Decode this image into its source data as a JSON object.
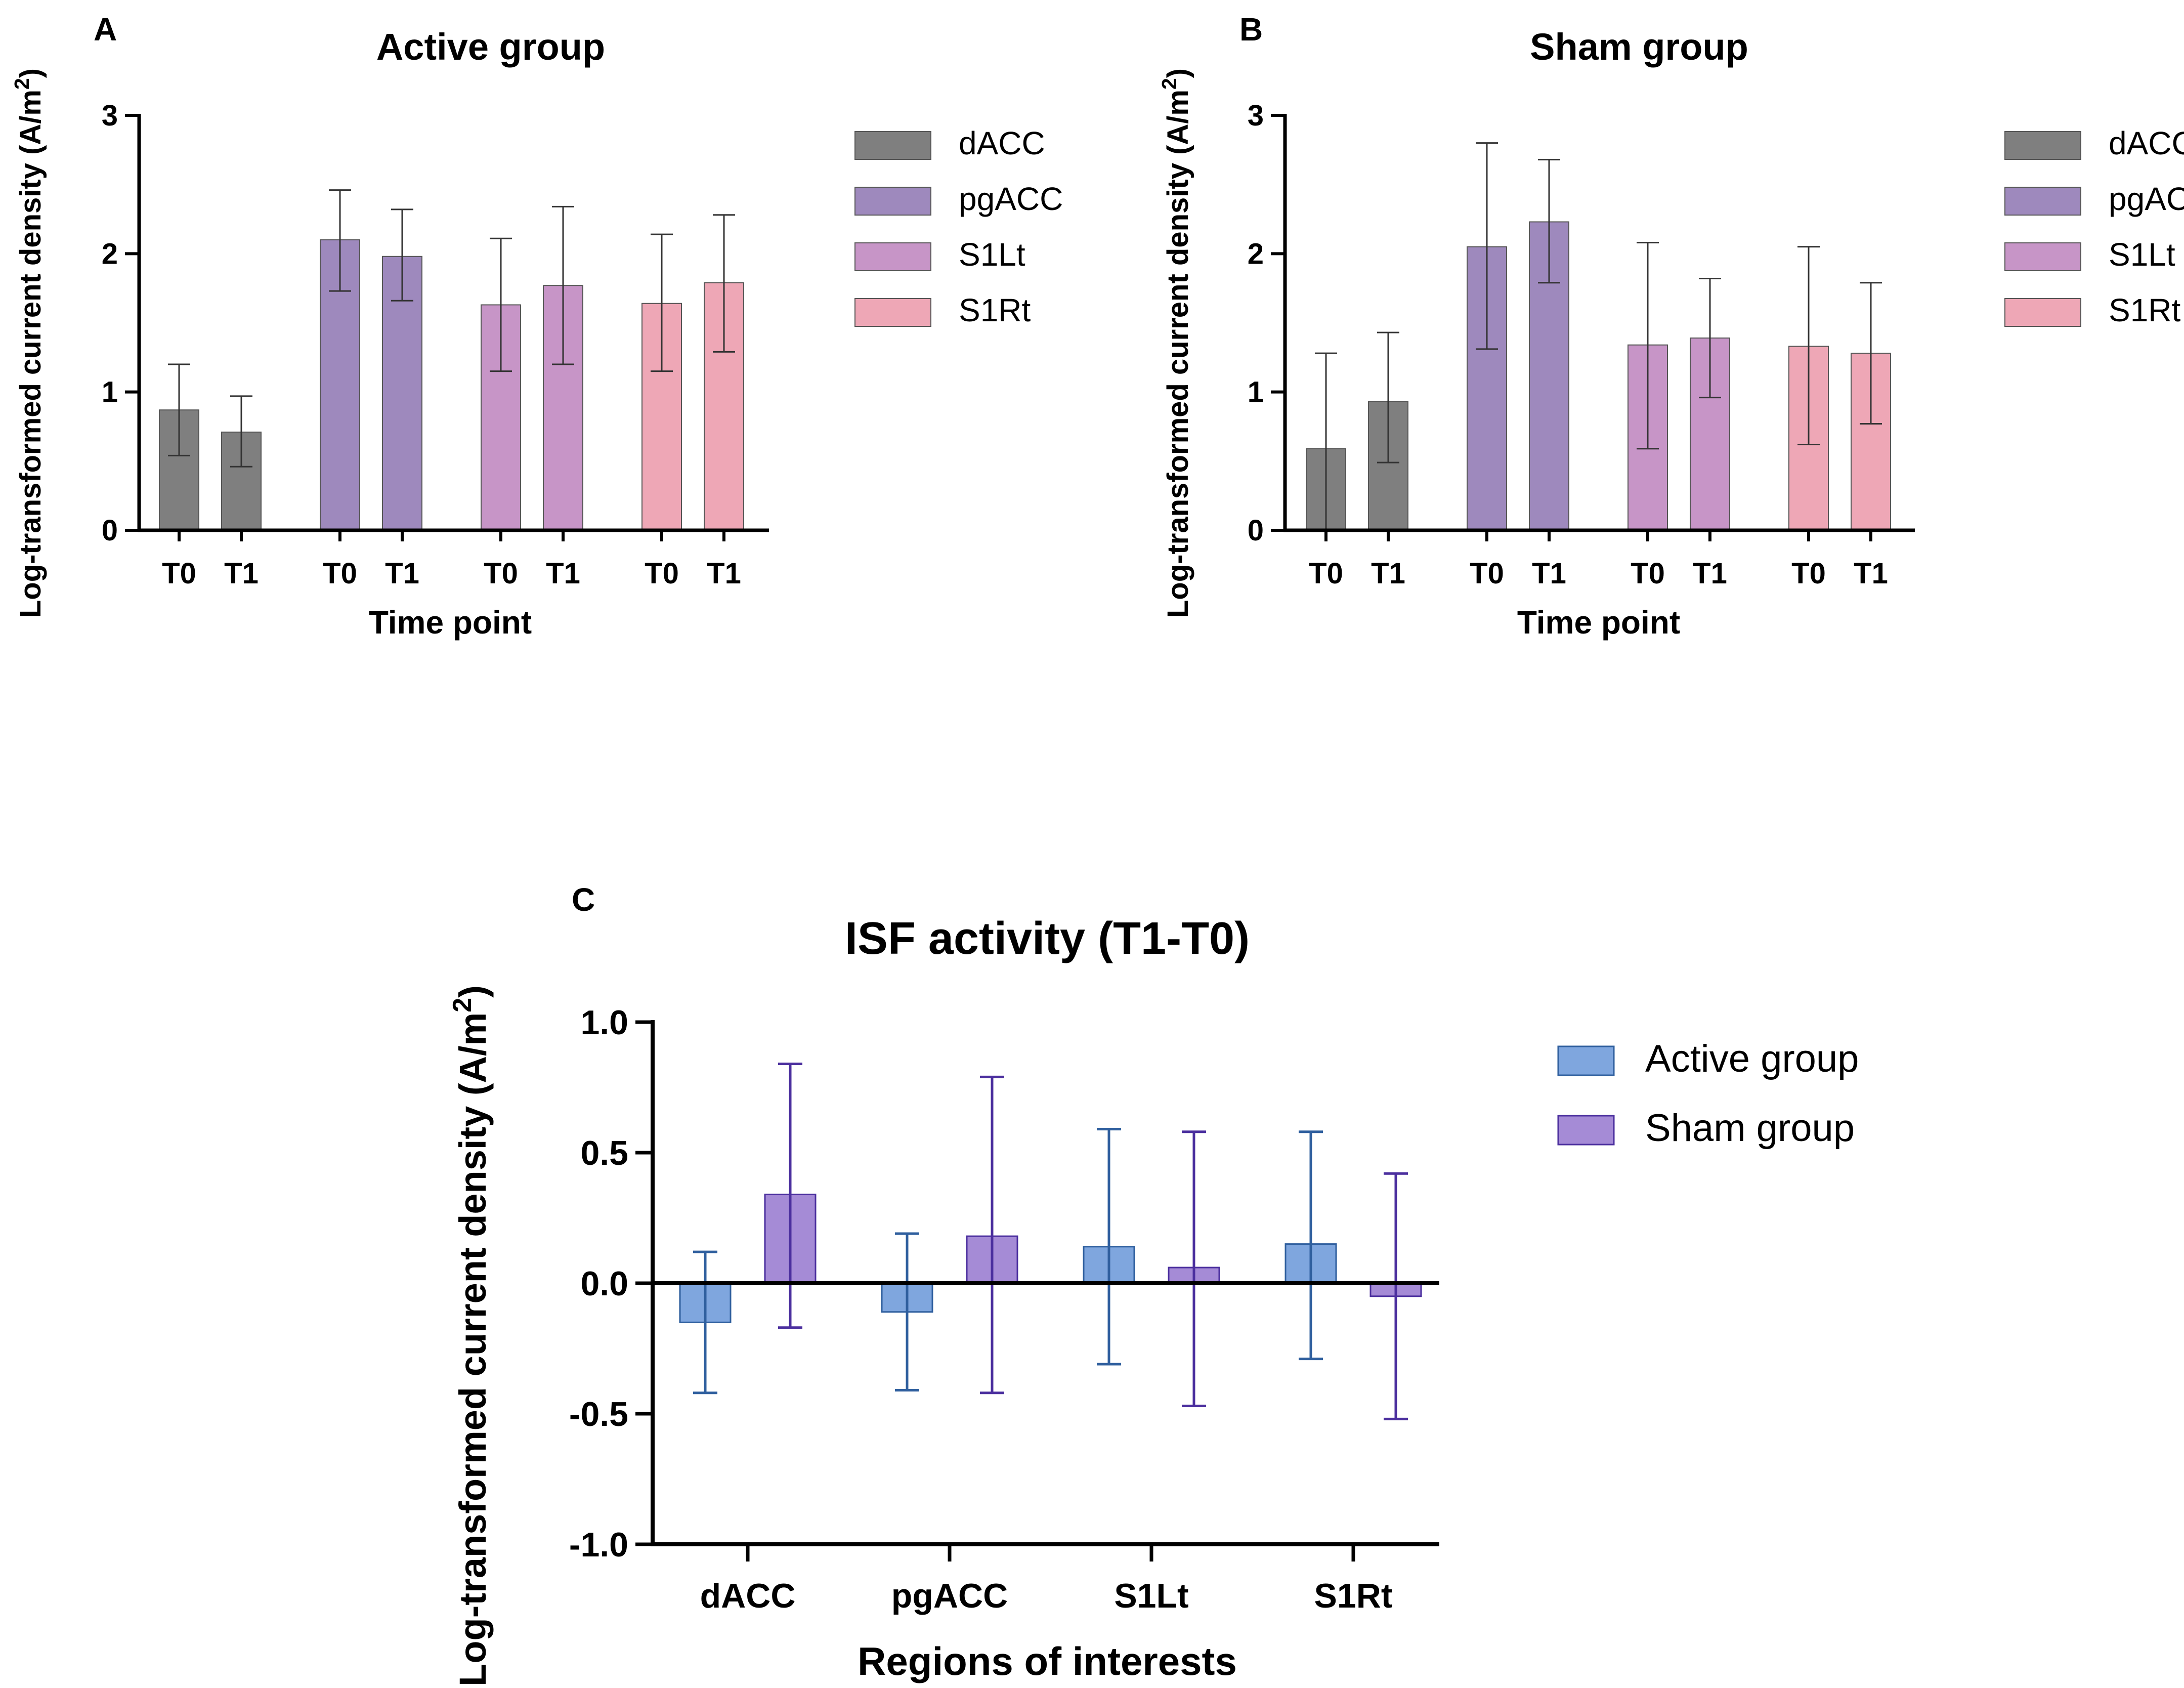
{
  "chart_data": [
    {
      "panel_label": "A",
      "type": "bar",
      "title": "Active group",
      "xlabel": "Time point",
      "ylabel_main": "Log-transformed current density (A/m",
      "ylabel_exp": "2",
      "ylabel_close": ")",
      "ylim": [
        0,
        3
      ],
      "yticks": [
        "0",
        "1",
        "2",
        "3"
      ],
      "categories": [
        "T0",
        "T1"
      ],
      "series": [
        {
          "name": "dACC",
          "color": "#7f7f7f",
          "values": [
            0.87,
            0.71
          ],
          "err_low": [
            0.54,
            0.46
          ],
          "err_high": [
            1.2,
            0.97
          ]
        },
        {
          "name": "pgACC",
          "color": "#9e89bd",
          "values": [
            2.1,
            1.98
          ],
          "err_low": [
            1.73,
            1.66
          ],
          "err_high": [
            2.46,
            2.32
          ]
        },
        {
          "name": "S1Lt",
          "color": "#c795c7",
          "values": [
            1.63,
            1.77
          ],
          "err_low": [
            1.15,
            1.2
          ],
          "err_high": [
            2.11,
            2.34
          ]
        },
        {
          "name": "S1Rt",
          "color": "#eea7b6",
          "values": [
            1.64,
            1.79
          ],
          "err_low": [
            1.15,
            1.29
          ],
          "err_high": [
            2.14,
            2.28
          ]
        }
      ]
    },
    {
      "panel_label": "B",
      "type": "bar",
      "title": "Sham group",
      "xlabel": "Time point",
      "ylabel_main": "Log-transformed current density (A/m",
      "ylabel_exp": "2",
      "ylabel_close": ")",
      "ylim": [
        0,
        3
      ],
      "yticks": [
        "0",
        "1",
        "2",
        "3"
      ],
      "categories": [
        "T0",
        "T1"
      ],
      "series": [
        {
          "name": "dACC",
          "color": "#7f7f7f",
          "values": [
            0.59,
            0.93
          ],
          "err_low": [
            0.0,
            0.49
          ],
          "err_high": [
            1.28,
            1.43
          ]
        },
        {
          "name": "pgACC",
          "color": "#9e89bd",
          "values": [
            2.05,
            2.23
          ],
          "err_low": [
            1.31,
            1.79
          ],
          "err_high": [
            2.8,
            2.68
          ]
        },
        {
          "name": "S1Lt",
          "color": "#c795c7",
          "values": [
            1.34,
            1.39
          ],
          "err_low": [
            0.59,
            0.96
          ],
          "err_high": [
            2.08,
            1.82
          ]
        },
        {
          "name": "S1Rt",
          "color": "#eea7b6",
          "values": [
            1.33,
            1.28
          ],
          "err_low": [
            0.62,
            0.77
          ],
          "err_high": [
            2.05,
            1.79
          ]
        }
      ]
    },
    {
      "panel_label": "C",
      "type": "bar",
      "title": "ISF activity (T1-T0)",
      "xlabel": "Regions of interests",
      "ylabel_main": "Log-transformed current density (A/m",
      "ylabel_exp": "2",
      "ylabel_close": ")",
      "ylim": [
        -1.0,
        1.0
      ],
      "yticks": [
        "-1.0",
        "-0.5",
        "0.0",
        "0.5",
        "1.0"
      ],
      "categories": [
        "dACC",
        "pgACC",
        "S1Lt",
        "S1Rt"
      ],
      "series": [
        {
          "name": "Active group",
          "color": "#7fa6de",
          "stroke": "#2f5f9e",
          "values": [
            -0.15,
            -0.11,
            0.14,
            0.15
          ],
          "err_low": [
            -0.42,
            -0.41,
            -0.31,
            -0.29
          ],
          "err_high": [
            0.12,
            0.19,
            0.59,
            0.58
          ]
        },
        {
          "name": "Sham group",
          "color": "#a58bd6",
          "stroke": "#4b2f9e",
          "values": [
            0.34,
            0.18,
            0.06,
            -0.05
          ],
          "err_low": [
            -0.17,
            -0.42,
            -0.47,
            -0.52
          ],
          "err_high": [
            0.84,
            0.79,
            0.58,
            0.42
          ]
        }
      ]
    }
  ]
}
